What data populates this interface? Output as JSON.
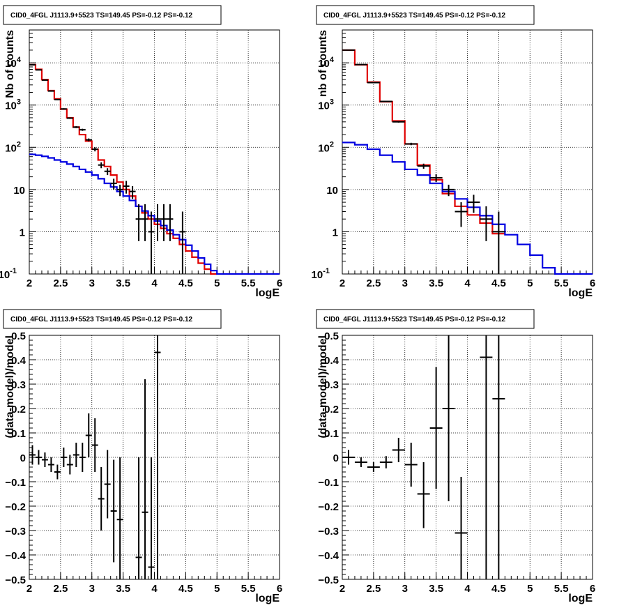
{
  "colors": {
    "data": "#000000",
    "total_model": "#e00000",
    "source_model": "#0000e0"
  },
  "chart_data": [
    {
      "type": "line",
      "title": "CID0_4FGL J1113.9+5523 TS=149.45 PS=-0.12 PS=-0.12",
      "xlabel": "logE",
      "ylabel": "Nb of counts",
      "xlim": [
        2,
        6
      ],
      "ylim": [
        0.1,
        60000
      ],
      "yscale": "log",
      "grid": true,
      "series": [
        {
          "kind": "hist",
          "role": "total",
          "edges": [
            2.0,
            2.1,
            2.2,
            2.3,
            2.4,
            2.5,
            2.6,
            2.7,
            2.8,
            2.9,
            3.0,
            3.1,
            3.2,
            3.3,
            3.4,
            3.5,
            3.6,
            3.7,
            3.8,
            3.9,
            4.0,
            4.1,
            4.2,
            4.3,
            4.4,
            4.5,
            4.6,
            4.7,
            4.8,
            4.9,
            5.0
          ],
          "values": [
            9000,
            7000,
            4000,
            2200,
            1400,
            800,
            500,
            300,
            200,
            140,
            90,
            50,
            35,
            22,
            15,
            10,
            7,
            4,
            2.8,
            2.0,
            1.5,
            1.2,
            0.9,
            0.7,
            0.5,
            0.35,
            0.25,
            0.18,
            0.13,
            0.1
          ]
        },
        {
          "kind": "hist",
          "role": "source",
          "edges": [
            2.0,
            2.1,
            2.2,
            2.3,
            2.4,
            2.5,
            2.6,
            2.7,
            2.8,
            2.9,
            3.0,
            3.1,
            3.2,
            3.3,
            3.4,
            3.5,
            3.6,
            3.7,
            3.8,
            3.9,
            4.0,
            4.1,
            4.2,
            4.3,
            4.4,
            4.5,
            4.6,
            4.7,
            4.8,
            4.9,
            5.0,
            5.1,
            5.2,
            5.3,
            5.4,
            5.5,
            5.6,
            5.7,
            5.8,
            5.9,
            6.0
          ],
          "values": [
            68,
            65,
            61,
            56,
            50,
            45,
            40,
            35,
            30,
            26,
            22,
            18,
            14,
            11.5,
            9,
            7,
            5.5,
            4,
            3.1,
            2.4,
            1.8,
            1.4,
            1.1,
            0.85,
            0.65,
            0.48,
            0.35,
            0.24,
            0.17,
            0.12,
            0.1,
            0.1,
            0.1,
            0.1,
            0.1,
            0.1,
            0.1,
            0.1,
            0.1,
            0.1
          ]
        },
        {
          "kind": "points",
          "role": "data",
          "x": [
            2.05,
            2.15,
            2.25,
            2.35,
            2.45,
            2.55,
            2.65,
            2.75,
            2.85,
            2.95,
            3.05,
            3.15,
            3.25,
            3.35,
            3.45,
            3.55,
            3.65,
            3.75,
            3.85,
            3.95,
            4.05,
            4.15,
            4.25,
            4.45
          ],
          "y": [
            9000,
            6800,
            3900,
            2150,
            1350,
            810,
            490,
            300,
            260,
            150,
            90,
            38,
            27,
            14,
            10,
            12,
            9,
            2,
            2,
            1,
            2,
            2,
            2,
            1
          ],
          "ylo": [
            8900,
            6700,
            3840,
            2100,
            1310,
            780,
            470,
            285,
            245,
            138,
            80,
            32,
            22,
            10,
            7,
            8,
            6,
            0.6,
            0.6,
            0.08,
            0.6,
            0.6,
            0.6,
            0.08
          ],
          "yhi": [
            9100,
            6900,
            3960,
            2200,
            1390,
            840,
            510,
            315,
            275,
            162,
            100,
            44,
            32,
            18,
            13,
            16,
            12,
            4.5,
            4.5,
            3,
            4.5,
            4.5,
            4.5,
            3
          ]
        }
      ]
    },
    {
      "type": "line",
      "title": "CID0_4FGL J1113.9+5523 TS=149.45 PS=-0.12 PS=-0.12",
      "xlabel": "logE",
      "ylabel": "nb of counts",
      "xlim": [
        2,
        6
      ],
      "ylim": [
        0.1,
        60000
      ],
      "yscale": "log",
      "grid": true,
      "series": [
        {
          "kind": "hist",
          "role": "total",
          "edges": [
            2.0,
            2.2,
            2.4,
            2.6,
            2.8,
            3.0,
            3.2,
            3.4,
            3.6,
            3.8,
            4.0,
            4.2,
            4.4,
            4.6
          ],
          "values": [
            20000,
            9000,
            3500,
            1200,
            420,
            120,
            38,
            17,
            8,
            4,
            2.5,
            1.6,
            0.9
          ]
        },
        {
          "kind": "hist",
          "role": "source",
          "edges": [
            2.0,
            2.2,
            2.4,
            2.6,
            2.8,
            3.0,
            3.2,
            3.4,
            3.6,
            3.8,
            4.0,
            4.2,
            4.4,
            4.6,
            4.8,
            5.0,
            5.2,
            5.4,
            5.6,
            5.8,
            6.0
          ],
          "values": [
            130,
            115,
            90,
            65,
            45,
            30,
            22,
            14,
            9,
            6,
            3.8,
            2.4,
            1.5,
            0.85,
            0.5,
            0.28,
            0.14,
            0.1,
            0.1,
            0.1
          ]
        },
        {
          "kind": "points",
          "role": "data",
          "x": [
            2.1,
            2.3,
            2.5,
            2.7,
            2.9,
            3.1,
            3.3,
            3.5,
            3.7,
            3.9,
            4.1,
            4.3,
            4.5
          ],
          "y": [
            20000,
            9100,
            3400,
            1220,
            400,
            120,
            36,
            19,
            10,
            3,
            5,
            2,
            1
          ],
          "ylo": [
            19800,
            9000,
            3350,
            1190,
            385,
            112,
            31,
            15,
            7,
            1.3,
            2.8,
            0.6,
            0.08
          ],
          "yhi": [
            20200,
            9200,
            3450,
            1250,
            415,
            128,
            41,
            23,
            13,
            5,
            7.5,
            4,
            3
          ]
        }
      ]
    },
    {
      "type": "scatter",
      "title": "CID0_4FGL J1113.9+5523 TS=149.45 PS=-0.12 PS=-0.12",
      "xlabel": "logE",
      "ylabel": "(data-model)/model",
      "xlim": [
        2,
        6
      ],
      "ylim": [
        -0.5,
        0.5
      ],
      "grid": true,
      "series": [
        {
          "kind": "points",
          "role": "data",
          "x": [
            2.05,
            2.15,
            2.25,
            2.35,
            2.45,
            2.55,
            2.65,
            2.75,
            2.85,
            2.95,
            3.05,
            3.15,
            3.25,
            3.35,
            3.45,
            3.75,
            3.85,
            3.95,
            4.05
          ],
          "y": [
            0.01,
            0.0,
            -0.01,
            -0.03,
            -0.06,
            0.0,
            -0.03,
            0.01,
            0.0,
            0.09,
            0.05,
            -0.17,
            -0.11,
            -0.22,
            -0.255,
            -0.41,
            -0.225,
            -0.45,
            0.43
          ],
          "ylo": [
            -0.03,
            -0.03,
            -0.04,
            -0.06,
            -0.09,
            -0.04,
            -0.07,
            -0.04,
            -0.06,
            0.0,
            -0.06,
            -0.3,
            -0.25,
            -0.43,
            -0.5,
            -0.5,
            -0.5,
            -0.5,
            -0.5
          ],
          "yhi": [
            0.05,
            0.03,
            0.02,
            0.0,
            -0.03,
            0.04,
            0.01,
            0.06,
            0.06,
            0.18,
            0.16,
            -0.04,
            0.03,
            -0.01,
            -0.0,
            0.0,
            0.32,
            0.0,
            0.5
          ]
        }
      ]
    },
    {
      "type": "scatter",
      "title": "CID0_4FGL J1113.9+5523 TS=149.45 PS=-0.12 PS=-0.12",
      "xlabel": "logE",
      "ylabel": "(data-model)/model",
      "xlim": [
        2,
        6
      ],
      "ylim": [
        -0.5,
        0.5
      ],
      "grid": true,
      "series": [
        {
          "kind": "points",
          "role": "data",
          "x": [
            2.1,
            2.3,
            2.5,
            2.7,
            2.9,
            3.1,
            3.3,
            3.5,
            3.7,
            3.9,
            4.3,
            4.5
          ],
          "y": [
            0.0,
            -0.02,
            -0.04,
            -0.02,
            0.03,
            -0.03,
            -0.15,
            0.12,
            0.2,
            -0.31,
            0.41,
            0.24
          ],
          "ylo": [
            -0.03,
            -0.04,
            -0.06,
            -0.045,
            -0.02,
            -0.12,
            -0.29,
            -0.13,
            -0.18,
            -0.5,
            -0.5,
            -0.5
          ],
          "yhi": [
            0.03,
            0.0,
            -0.02,
            0.005,
            0.08,
            0.06,
            -0.02,
            0.37,
            0.5,
            -0.08,
            0.5,
            0.5
          ]
        }
      ]
    }
  ]
}
